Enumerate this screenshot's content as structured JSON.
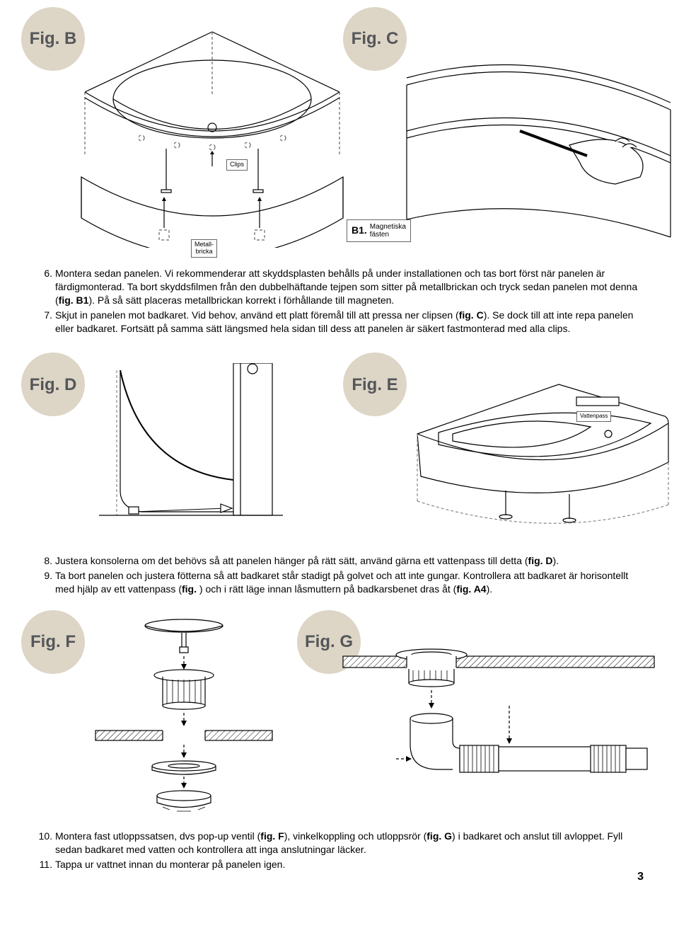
{
  "colors": {
    "badge_bg": "#ddd5c5",
    "badge_text": "#54565a",
    "line": "#1a1a1a",
    "bg": "#ffffff",
    "light_line": "#888888"
  },
  "figures": {
    "B": "Fig. B",
    "C": "Fig. C",
    "D": "Fig. D",
    "E": "Fig. E",
    "F": "Fig. F",
    "G": "Fig. G"
  },
  "labels": {
    "clips": "Clips",
    "metallbricka": "Metall-\nbricka",
    "b1_code": "B1.",
    "b1_text": "Magnetiska\nfästen",
    "vattenpass": "Vattenpass"
  },
  "text_block1": {
    "items": [
      {
        "n": "6.",
        "html": "Montera sedan panelen. Vi rekommenderar att skyddsplasten behålls på under installationen och tas bort först när panelen är färdigmonterad. Ta bort skyddsfilmen från den dubbelhäftande tejpen som sitter på metallbrickan och tryck sedan panelen mot denna (<b>fig. B1</b>). På så sätt placeras metallbrickan korrekt i förhållande till magneten."
      },
      {
        "n": "7.",
        "html": "Skjut in panelen mot badkaret. Vid behov, använd ett platt föremål till att pressa ner clipsen (<b>fig. C</b>). Se dock till att inte repa panelen eller badkaret. Fortsätt på samma sätt längsmed hela sidan till dess att panelen är säkert fastmonterad med alla clips."
      }
    ]
  },
  "text_block2": {
    "items": [
      {
        "n": "8.",
        "html": "Justera konsolerna om det behövs så att panelen hänger på rätt sätt, använd gärna ett vattenpass till detta (<b>fig. D</b>)."
      },
      {
        "n": "9.",
        "html": "Ta bort panelen och justera fötterna så att badkaret står stadigt på golvet och att inte gungar. Kontrollera att badkaret är horisontellt med hjälp av ett vattenpass (<b>fig. </b>) och i rätt läge innan låsmuttern på badkarsbenet dras åt (<b>fig. A4</b>)."
      }
    ]
  },
  "text_block3": {
    "items": [
      {
        "n": "10.",
        "html": "Montera fast utloppssatsen, dvs pop-up ventil (<b>fig. F</b>), vinkelkoppling och utloppsrör (<b>fig. G</b>) i badkaret och anslut till avloppet. Fyll sedan badkaret med vatten och kontrollera att inga anslutningar läcker."
      },
      {
        "n": "11.",
        "html": "Tappa ur vattnet innan du monterar på panelen igen."
      }
    ]
  },
  "page_number": "3"
}
